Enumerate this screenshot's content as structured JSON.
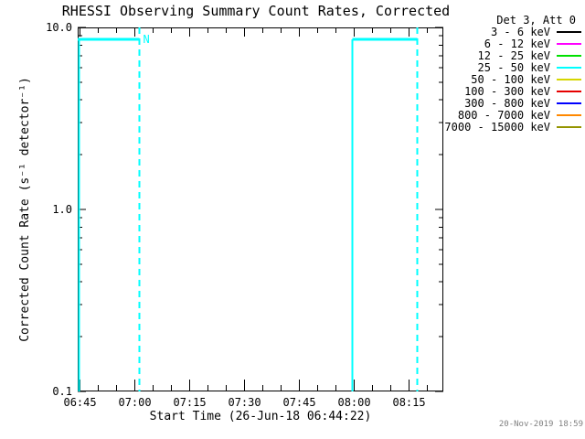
{
  "chart_data": {
    "type": "line",
    "title": "RHESSI Observing Summary Count Rates, Corrected",
    "xlabel": "Start Time (26-Jun-18 06:44:22)",
    "ylabel": "Corrected Count Rate (s⁻¹ detector⁻¹)",
    "x_axis": {
      "start_time": "06:44:22",
      "end_time": "08:24:22",
      "major_ticks": [
        "06:45",
        "07:00",
        "07:15",
        "07:30",
        "07:45",
        "08:00",
        "08:15"
      ],
      "major_tick_interval_min": 15,
      "minor_tick_interval_min": 5
    },
    "y_axis": {
      "scale": "log",
      "min": 0.1,
      "max": 10.0,
      "ticks": [
        {
          "label": "10.0",
          "value": 10.0
        },
        {
          "label": "1.0",
          "value": 1.0
        },
        {
          "label": "0.1",
          "value": 0.1
        }
      ],
      "minor_tick_values": [
        0.2,
        0.3,
        0.4,
        0.5,
        0.6,
        0.7,
        0.8,
        0.9,
        2,
        3,
        4,
        5,
        6,
        7,
        8,
        9
      ]
    },
    "legend": {
      "header": "Det 3, Att 0",
      "entries": [
        {
          "label": "3 - 6 keV",
          "color": "#000000"
        },
        {
          "label": "6 - 12 keV",
          "color": "#FF00FF"
        },
        {
          "label": "12 - 25 keV",
          "color": "#00E000"
        },
        {
          "label": "25 - 50 keV",
          "color": "#00FFFF"
        },
        {
          "label": "50 - 100 keV",
          "color": "#D6D600"
        },
        {
          "label": "100 - 300 keV",
          "color": "#E60000"
        },
        {
          "label": "300 - 800 keV",
          "color": "#0000FF"
        },
        {
          "label": "800 - 7000 keV",
          "color": "#FF8800"
        },
        {
          "label": "7000 - 15000 keV",
          "color": "#949400"
        }
      ]
    },
    "series": [
      {
        "name": "25 - 50 keV",
        "color": "#00FFFF",
        "segments": [
          {
            "points": [
              [
                "06:44:22",
                0.1
              ],
              [
                "06:44:22",
                8.6
              ],
              [
                "07:01:15",
                8.6
              ]
            ]
          },
          {
            "points": [
              [
                "07:59:30",
                0.1
              ],
              [
                "07:59:30",
                8.6
              ],
              [
                "08:17:15",
                8.6
              ]
            ]
          }
        ]
      }
    ],
    "annotations": [
      {
        "type": "vline",
        "style": "dashed",
        "time": "07:01:15",
        "color": "#00FFFF",
        "label": "N",
        "label_v": 8.6
      },
      {
        "type": "vline",
        "style": "dashed",
        "time": "08:17:15",
        "color": "#00FFFF",
        "label": "",
        "label_v": 8.6
      }
    ]
  },
  "footer": {
    "timestamp": "20-Nov-2019 18:59"
  }
}
